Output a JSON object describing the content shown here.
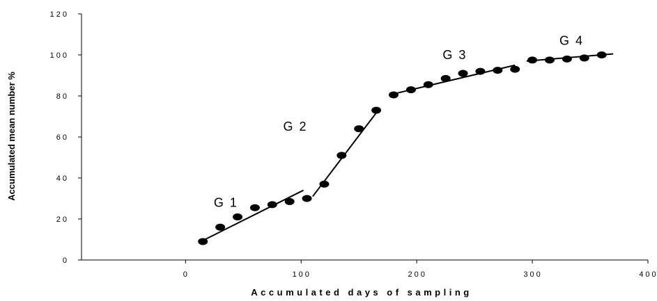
{
  "chart_data": {
    "type": "scatter",
    "title": "",
    "xlabel": "Accumulated days of sampling",
    "ylabel": "Accumulated mean number %",
    "xlim": [
      -90,
      400
    ],
    "ylim": [
      0,
      120
    ],
    "x_ticks": [
      0,
      100,
      200,
      300,
      400
    ],
    "y_ticks": [
      0,
      20,
      40,
      60,
      80,
      100,
      120
    ],
    "x_tick_labels": [
      "0",
      "100",
      "200",
      "300",
      "400"
    ],
    "y_tick_labels": [
      "0",
      "20",
      "40",
      "60",
      "80",
      "100",
      "120"
    ],
    "grid": false,
    "legend": "none",
    "series": [
      {
        "x": [
          15,
          30,
          45,
          60,
          75,
          90,
          105,
          120,
          135,
          150,
          165,
          180,
          195,
          210,
          225,
          240,
          255,
          270,
          285,
          300,
          315,
          330,
          345,
          360
        ],
        "y": [
          9,
          16,
          21,
          25.5,
          27,
          28.5,
          30,
          37,
          51,
          64,
          73,
          80.5,
          83,
          85.5,
          88.5,
          91,
          92,
          92.5,
          93,
          97.5,
          97.5,
          98,
          98.5,
          100
        ],
        "color": "#000000"
      }
    ],
    "fit_lines": [
      {
        "label": "G 1",
        "x": [
          15,
          102
        ],
        "y": [
          9.5,
          34
        ]
      },
      {
        "label": "G 2",
        "x": [
          110,
          168
        ],
        "y": [
          31,
          74
        ]
      },
      {
        "label": "G 3",
        "x": [
          180,
          285
        ],
        "y": [
          81,
          95
        ]
      },
      {
        "label": "G 4",
        "x": [
          295,
          370
        ],
        "y": [
          97,
          100.5
        ]
      }
    ],
    "annotations": [
      {
        "text": "G 1",
        "x": 35,
        "y": 26
      },
      {
        "text": "G 2",
        "x": 95,
        "y": 63
      },
      {
        "text": "G 3",
        "x": 233,
        "y": 98
      },
      {
        "text": "G 4",
        "x": 334,
        "y": 105
      }
    ]
  }
}
